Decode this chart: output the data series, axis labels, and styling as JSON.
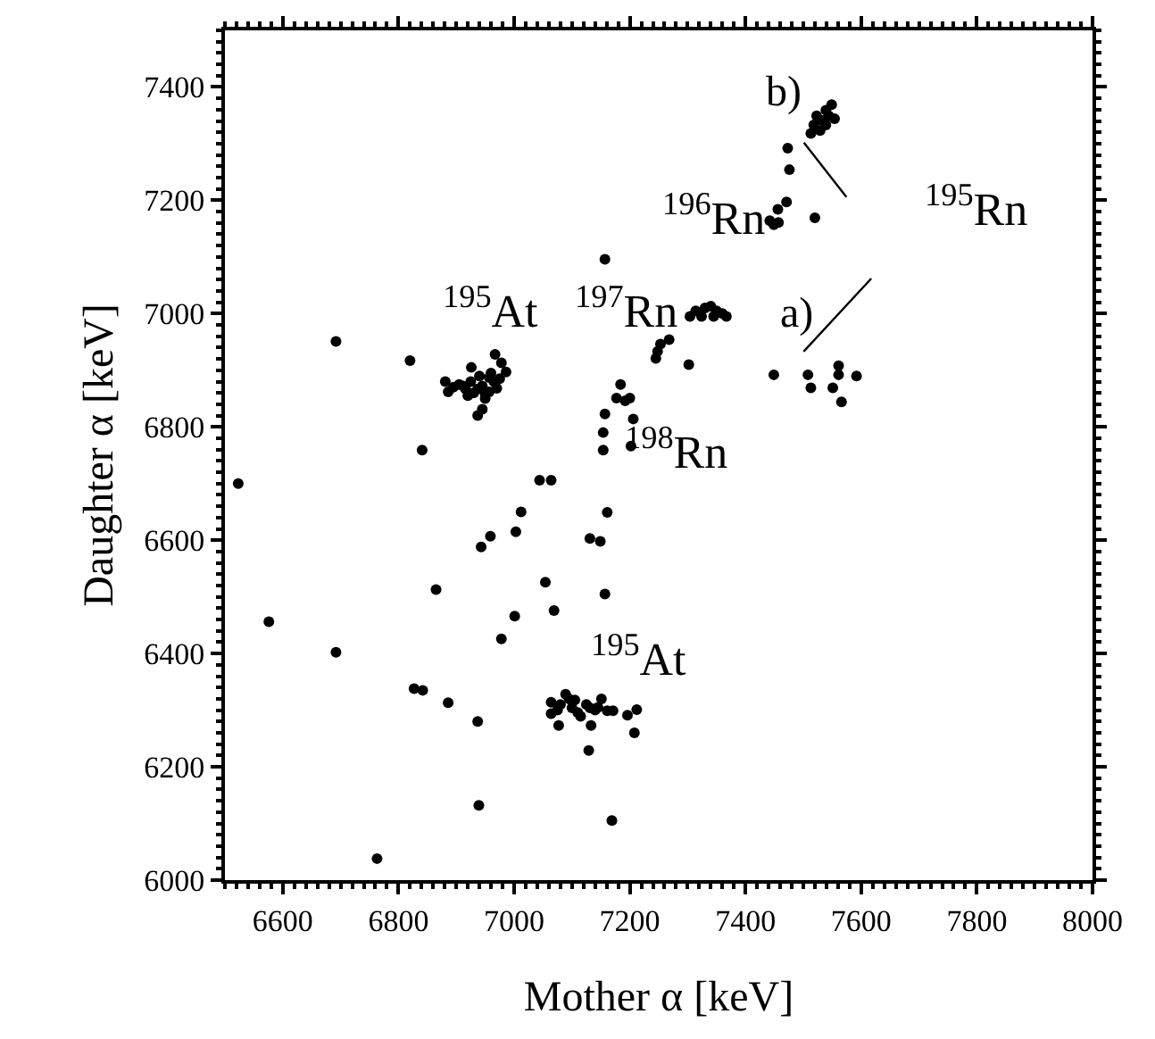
{
  "chart_data": {
    "type": "scatter",
    "xlabel": "Mother α [keV]",
    "ylabel": "Daughter α [keV]",
    "xlim": [
      6500,
      8000
    ],
    "xticks": [
      6600,
      6800,
      7000,
      7200,
      7400,
      7600,
      7800,
      8000
    ],
    "ylim": [
      6000,
      7500
    ],
    "yticks": [
      6000,
      6200,
      6400,
      6600,
      6800,
      7000,
      7200,
      7400
    ],
    "marker": "circle",
    "series": [
      {
        "color": "#000000",
        "x": [
          6523,
          6692,
          6820,
          6841,
          6881,
          6886,
          6926,
          6937,
          6945,
          6967,
          6978,
          6986,
          6957,
          6916,
          6937,
          6957,
          6905,
          6925,
          6945,
          6965,
          6930,
          6950,
          6970,
          6912,
          6940,
          6960,
          6975,
          6895,
          6920,
          6950,
          6943,
          6959,
          7003,
          7012,
          7044,
          7064,
          7131,
          7149,
          7161,
          7157,
          7184,
          7177,
          7192,
          7200,
          7157,
          7206,
          7154,
          7154,
          7202,
          7304,
          7314,
          7330,
          7340,
          7350,
          7360,
          7367,
          7324,
          7345,
          7268,
          7253,
          7248,
          7245,
          7302,
          7473,
          7476,
          7471,
          7456,
          7442,
          7449,
          7457,
          7520,
          7549,
          7539,
          7523,
          7533,
          7518,
          7513,
          7539,
          7554,
          7529,
          7544,
          7449,
          7508,
          7513,
          7551,
          7561,
          7561,
          7592,
          7566,
          6576,
          6692,
          6865,
          6827,
          6842,
          6886,
          6937,
          6939,
          6763,
          7054,
          7069,
          7001,
          6978,
          7157,
          7064,
          7064,
          7077,
          7089,
          7100,
          7115,
          7131,
          7151,
          7161,
          7133,
          7129,
          7171,
          7196,
          7208,
          7169,
          7212,
          7080,
          7095,
          7110,
          7125,
          7140,
          7075,
          7105,
          7145
        ],
        "values": [
          6700,
          6951,
          6917,
          6759,
          6880,
          6862,
          6905,
          6820,
          6831,
          6928,
          6913,
          6897,
          6887,
          6867,
          6867,
          6862,
          6875,
          6880,
          6872,
          6880,
          6860,
          6858,
          6868,
          6872,
          6890,
          6895,
          6885,
          6870,
          6855,
          6850,
          6588,
          6607,
          6615,
          6650,
          6706,
          6706,
          6603,
          6598,
          6649,
          7096,
          6875,
          6851,
          6846,
          6851,
          6823,
          6814,
          6790,
          6759,
          6766,
          6995,
          7005,
          7010,
          7013,
          7005,
          7000,
          6995,
          6995,
          6995,
          6954,
          6946,
          6933,
          6921,
          6910,
          7292,
          7254,
          7197,
          7184,
          7164,
          7157,
          7161,
          7169,
          7369,
          7359,
          7349,
          7341,
          7333,
          7318,
          7333,
          7344,
          7323,
          7349,
          6892,
          6892,
          6869,
          6869,
          6908,
          6892,
          6890,
          6844,
          6456,
          6402,
          6513,
          6338,
          6335,
          6313,
          6280,
          6132,
          6038,
          6526,
          6476,
          6466,
          6426,
          6505,
          6314,
          6294,
          6273,
          6328,
          6304,
          6289,
          6304,
          6320,
          6299,
          6273,
          6229,
          6299,
          6291,
          6260,
          6105,
          6301,
          6310,
          6320,
          6296,
          6310,
          6300,
          6300,
          6318,
          6305
        ]
      }
    ],
    "annotations": [
      "$^{195}$At",
      "$^{197}$Rn",
      "$^{196}$Rn",
      {
        "text": "$^{195}$Rn",
        "x": 7501,
        "y": 7302
      },
      "$^{198}$Rn",
      "$^{195}$At",
      "a)",
      "b)"
    ]
  }
}
